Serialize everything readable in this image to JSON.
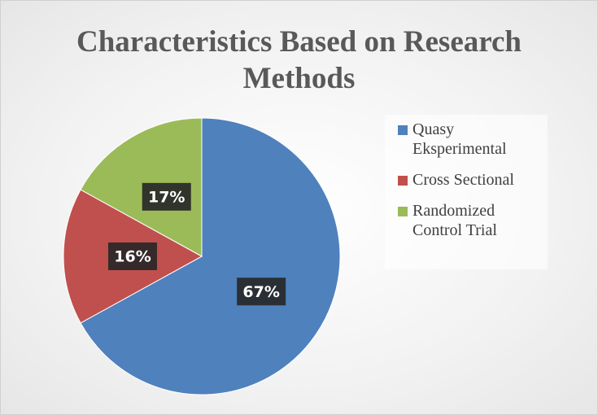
{
  "chart_data": {
    "type": "pie",
    "title": "Characteristics Based on Research Methods",
    "categories": [
      "Quasy Eksperimental",
      "Cross Sectional",
      "Randomized Control Trial"
    ],
    "values": [
      67,
      16,
      17
    ],
    "value_labels": [
      "67%",
      "16%",
      "17%"
    ],
    "colors": [
      "#4f81bd",
      "#c0504d",
      "#9bbb59"
    ],
    "legend": "right"
  }
}
